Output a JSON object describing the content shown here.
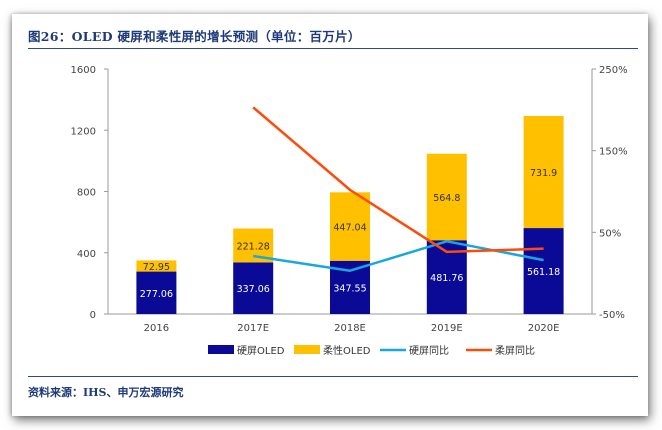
{
  "title": "图26：OLED 硬屏和柔性屏的增长预测（单位：百万片）",
  "source": "资料来源：IHS、申万宏源研究",
  "chart_data": {
    "type": "bar",
    "stacked": true,
    "categories": [
      "2016",
      "2017E",
      "2018E",
      "2019E",
      "2020E"
    ],
    "series": [
      {
        "name": "硬屏OLED",
        "kind": "bar",
        "axis": "left",
        "color": "#0a0a96",
        "values": [
          277.06,
          337.06,
          347.55,
          481.76,
          561.18
        ]
      },
      {
        "name": "柔性OLED",
        "kind": "bar",
        "axis": "left",
        "color": "#ffc000",
        "values": [
          72.95,
          221.28,
          447.04,
          564.8,
          731.9
        ]
      },
      {
        "name": "硬屏同比",
        "kind": "line",
        "axis": "right",
        "color": "#1aa7e0",
        "values": [
          null,
          0.21,
          0.03,
          0.39,
          0.16
        ]
      },
      {
        "name": "柔屏同比",
        "kind": "line",
        "axis": "right",
        "color": "#ff4b0a",
        "values": [
          null,
          2.03,
          1.02,
          0.26,
          0.3
        ]
      }
    ],
    "data_labels": [
      [
        "277.06",
        "337.06",
        "347.55",
        "481.76",
        "561.18"
      ],
      [
        "72.95",
        "221.28",
        "447.04",
        "564.8",
        "731.9"
      ]
    ],
    "y_left": {
      "ylim": [
        0,
        1600
      ],
      "ticks": [
        "0",
        "400",
        "800",
        "1200",
        "1600"
      ]
    },
    "y_right": {
      "ylim": [
        -0.5,
        2.5
      ],
      "ticks": [
        "-50%",
        "50%",
        "150%",
        "250%"
      ]
    },
    "legend_position": "bottom",
    "grid": false
  }
}
